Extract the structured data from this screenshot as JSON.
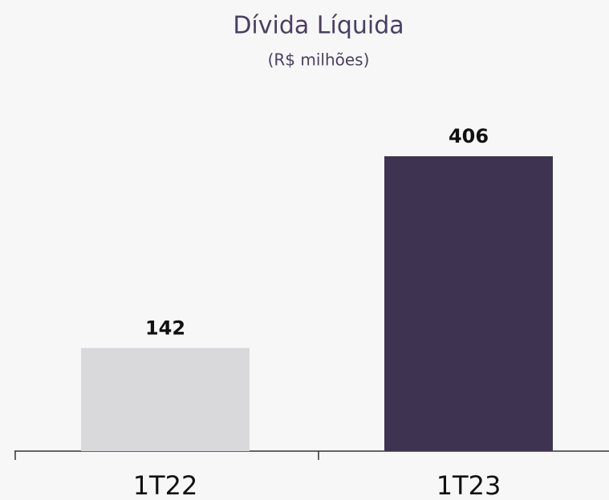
{
  "chart_data": {
    "type": "bar",
    "title": "Dívida Líquida",
    "subtitle": "(R$ milhões)",
    "categories": [
      "1T22",
      "1T23"
    ],
    "values": [
      142,
      406
    ],
    "colors": [
      "#d9d9db",
      "#3e3451"
    ]
  }
}
